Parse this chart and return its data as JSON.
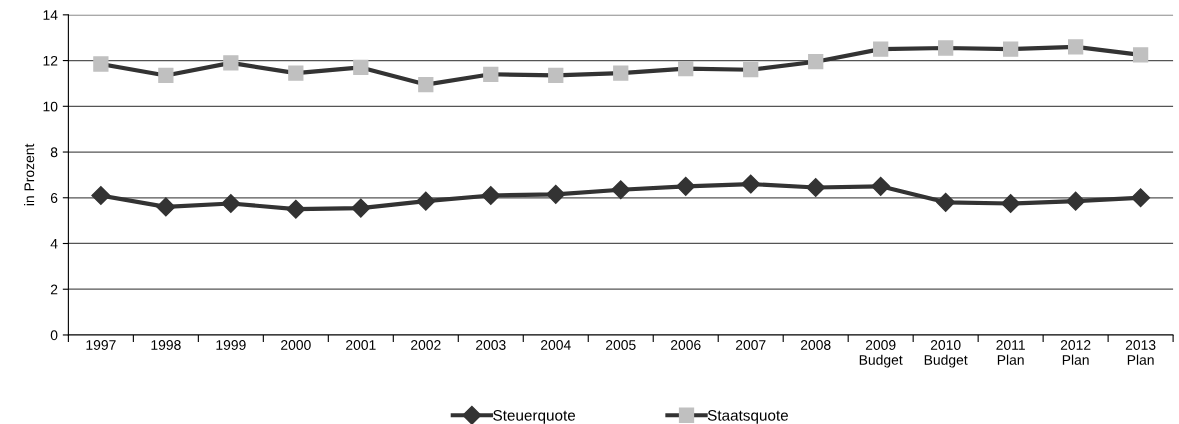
{
  "chart_data": {
    "type": "line",
    "ylabel": "in Prozent",
    "categories": [
      "1997",
      "1998",
      "1999",
      "2000",
      "2001",
      "2002",
      "2003",
      "2004",
      "2005",
      "2006",
      "2007",
      "2008",
      "2009\nBudget",
      "2010\nBudget",
      "2011\nPlan",
      "2012\nPlan",
      "2013\nPlan"
    ],
    "series": [
      {
        "name": "Steuerquote",
        "color": "#333333",
        "marker": "diamond",
        "values": [
          6.1,
          5.6,
          5.75,
          5.5,
          5.55,
          5.85,
          6.1,
          6.15,
          6.35,
          6.5,
          6.6,
          6.45,
          6.5,
          5.8,
          5.75,
          5.85,
          6.0
        ]
      },
      {
        "name": "Staatsquote",
        "color": "#c0c0c0",
        "marker": "square",
        "values": [
          11.85,
          11.35,
          11.9,
          11.45,
          11.7,
          10.95,
          11.4,
          11.35,
          11.45,
          11.65,
          11.6,
          11.95,
          12.5,
          12.55,
          12.5,
          12.6,
          12.25
        ]
      }
    ],
    "ylim": [
      0,
      14
    ],
    "yticks": [
      0,
      2,
      4,
      6,
      8,
      10,
      12,
      14
    ],
    "grid": "y",
    "legend": "bottom",
    "line_style": "solid"
  }
}
